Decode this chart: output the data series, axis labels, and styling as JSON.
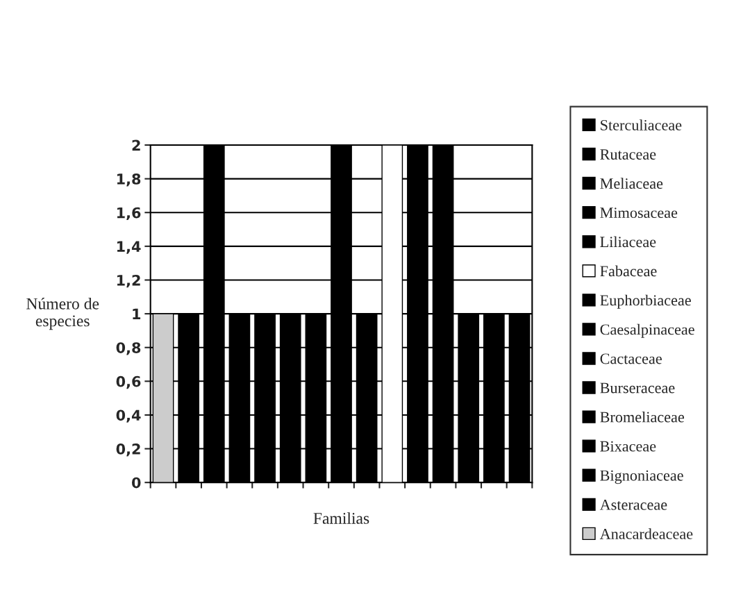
{
  "chart_data": {
    "type": "bar",
    "xlabel": "Familias",
    "ylabel": "Número de\nespecies",
    "categories": [
      null,
      null,
      null,
      null,
      null,
      null,
      null,
      null,
      null,
      null,
      null,
      null,
      null,
      null,
      null
    ],
    "series": [
      {
        "name": "Anacardeaceae",
        "color": "#cccccc",
        "values": [
          1,
          null,
          null,
          null,
          null,
          null,
          null,
          null,
          null,
          null,
          null,
          null,
          null,
          null,
          null
        ]
      },
      {
        "name": "Asteraceae",
        "color": "#000000",
        "values": [
          null,
          1,
          null,
          null,
          null,
          null,
          null,
          null,
          null,
          null,
          null,
          null,
          null,
          null,
          null
        ]
      },
      {
        "name": "Bignoniaceae",
        "color": "#000000",
        "values": [
          null,
          null,
          2,
          null,
          null,
          null,
          null,
          null,
          null,
          null,
          null,
          null,
          null,
          null,
          null
        ]
      },
      {
        "name": "Bixaceae",
        "color": "#000000",
        "values": [
          null,
          null,
          null,
          1,
          null,
          null,
          null,
          null,
          null,
          null,
          null,
          null,
          null,
          null,
          null
        ]
      },
      {
        "name": "Bromeliaceae",
        "color": "#000000",
        "values": [
          null,
          null,
          null,
          null,
          1,
          null,
          null,
          null,
          null,
          null,
          null,
          null,
          null,
          null,
          null
        ]
      },
      {
        "name": "Burseraceae",
        "color": "#000000",
        "values": [
          null,
          null,
          null,
          null,
          null,
          1,
          null,
          null,
          null,
          null,
          null,
          null,
          null,
          null,
          null
        ]
      },
      {
        "name": "Cactaceae",
        "color": "#000000",
        "values": [
          null,
          null,
          null,
          null,
          null,
          null,
          1,
          null,
          null,
          null,
          null,
          null,
          null,
          null,
          null
        ]
      },
      {
        "name": "Caesalpinaceae",
        "color": "#000000",
        "values": [
          null,
          null,
          null,
          null,
          null,
          null,
          null,
          2,
          null,
          null,
          null,
          null,
          null,
          null,
          null
        ]
      },
      {
        "name": "Euphorbiaceae",
        "color": "#000000",
        "values": [
          null,
          null,
          null,
          null,
          null,
          null,
          null,
          null,
          1,
          null,
          null,
          null,
          null,
          null,
          null
        ]
      },
      {
        "name": "Fabaceae",
        "color": "#ffffff",
        "values": [
          null,
          null,
          null,
          null,
          null,
          null,
          null,
          null,
          null,
          2,
          null,
          null,
          null,
          null,
          null
        ]
      },
      {
        "name": "Liliaceae",
        "color": "#000000",
        "values": [
          null,
          null,
          null,
          null,
          null,
          null,
          null,
          null,
          null,
          null,
          2,
          null,
          null,
          null,
          null
        ]
      },
      {
        "name": "Mimosaceae",
        "color": "#000000",
        "values": [
          null,
          null,
          null,
          null,
          null,
          null,
          null,
          null,
          null,
          null,
          null,
          2,
          null,
          null,
          null
        ]
      },
      {
        "name": "Meliaceae",
        "color": "#000000",
        "values": [
          null,
          null,
          null,
          null,
          null,
          null,
          null,
          null,
          null,
          null,
          null,
          null,
          1,
          null,
          null
        ]
      },
      {
        "name": "Rutaceae",
        "color": "#000000",
        "values": [
          null,
          null,
          null,
          null,
          null,
          null,
          null,
          null,
          null,
          null,
          null,
          null,
          null,
          1,
          null
        ]
      },
      {
        "name": "Sterculiaceae",
        "color": "#000000",
        "values": [
          null,
          null,
          null,
          null,
          null,
          null,
          null,
          null,
          null,
          null,
          null,
          null,
          null,
          null,
          1
        ]
      }
    ],
    "ylim": [
      0,
      2
    ],
    "yticks": [
      0,
      {
        "value": 0.2,
        "label": "0,2"
      },
      {
        "value": 0.4,
        "label": "0,4"
      },
      {
        "value": 0.6,
        "label": "0,6"
      },
      {
        "value": 0.8,
        "label": "0,8"
      },
      1,
      {
        "value": 1.2,
        "label": "1,2"
      },
      {
        "value": 1.4,
        "label": "1,4"
      },
      {
        "value": 1.6,
        "label": "1,6"
      },
      {
        "value": 1.8,
        "label": "1,8"
      },
      2
    ],
    "grid": "y",
    "legend": "right",
    "tick_labels": "y"
  }
}
